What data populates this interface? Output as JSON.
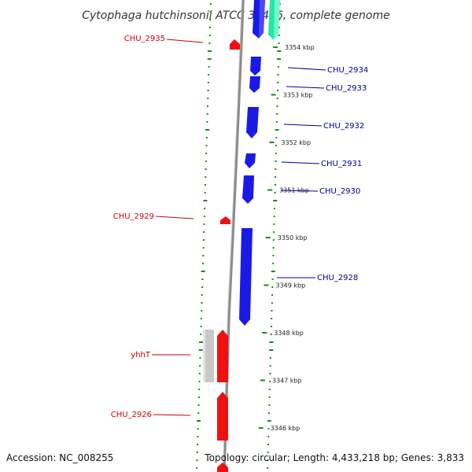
{
  "title": "Cytophaga hutchinsonii ATCC 33406, complete genome",
  "footer": {
    "accession": "Accession: NC_008255",
    "summary": "Topology: circular; Length: 4,433,218 bp; Genes: 3,833"
  },
  "colors": {
    "forward_strand": "#1a1ae6",
    "reverse_strand": "#ee1111",
    "rna": "#20e8a8",
    "pseudo": "#c8c8c8",
    "backbone": "#8a8a8a",
    "gc_dots": "#1a8a1a",
    "forward_label": "#00008b",
    "reverse_label": "#cc0000"
  },
  "ticks": [
    {
      "label": "3354 kbp",
      "kbp": 3354
    },
    {
      "label": "3353 kbp",
      "kbp": 3353
    },
    {
      "label": "3352 kbp",
      "kbp": 3352
    },
    {
      "label": "3351 kbp",
      "kbp": 3351
    },
    {
      "label": "3350 kbp",
      "kbp": 3350
    },
    {
      "label": "3349 kbp",
      "kbp": 3349
    },
    {
      "label": "3348 kbp",
      "kbp": 3348
    },
    {
      "label": "3347 kbp",
      "kbp": 3347
    },
    {
      "label": "3346 kbp",
      "kbp": 3346
    }
  ],
  "forward_labels": [
    "CHU_2934",
    "CHU_2933",
    "CHU_2932",
    "CHU_2931",
    "CHU_2930",
    "CHU_2928"
  ],
  "reverse_labels": [
    "CHU_2935",
    "CHU_2929",
    "yhhT",
    "CHU_2926"
  ]
}
